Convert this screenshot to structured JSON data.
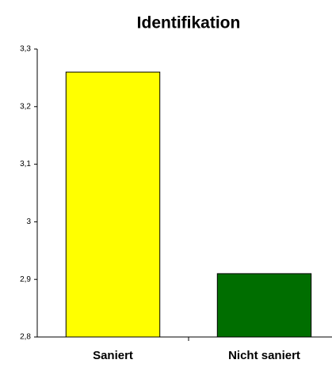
{
  "chart_data": {
    "type": "bar",
    "title": "Identifikation",
    "categories": [
      "Saniert",
      "Nicht saniert"
    ],
    "values": [
      3.26,
      2.91
    ],
    "colors": [
      "#ffff00",
      "#006e00"
    ],
    "ylim": [
      2.8,
      3.3
    ],
    "yticks": [
      {
        "value": 2.8,
        "label": "2,8"
      },
      {
        "value": 2.9,
        "label": "2,9"
      },
      3,
      {
        "value": 3.1,
        "label": "3,1"
      },
      {
        "value": 3.2,
        "label": "3,2"
      },
      {
        "value": 3.3,
        "label": "3,3"
      }
    ],
    "grid": false
  }
}
